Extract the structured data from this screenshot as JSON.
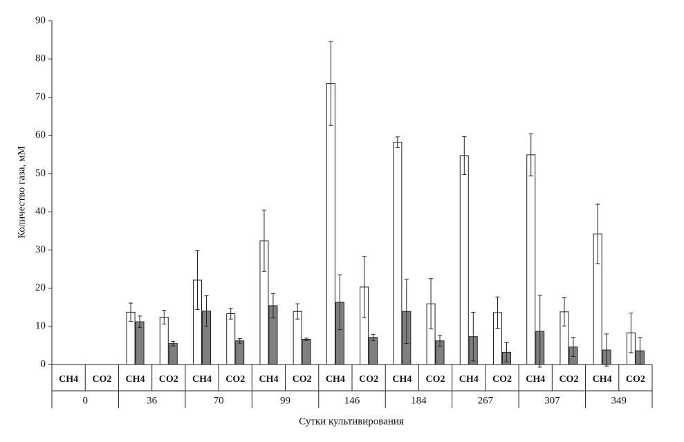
{
  "chart_data": {
    "type": "bar",
    "x_label": "Сутки культивирования",
    "y_label": "Количество газа, мМ",
    "groups": [
      "0",
      "36",
      "70",
      "99",
      "146",
      "184",
      "267",
      "307",
      "349"
    ],
    "categories": [
      "CH4",
      "CO2",
      "CH4",
      "CO2",
      "CH4",
      "CO2",
      "CH4",
      "CO2",
      "CH4",
      "CO2",
      "CH4",
      "CO2",
      "CH4",
      "CO2",
      "CH4",
      "CO2",
      "CH4",
      "CO2"
    ],
    "series": [
      {
        "color": "#ffffff",
        "values": [
          null,
          null,
          13.7,
          12.4,
          22.1,
          13.3,
          32.4,
          13.9,
          73.6,
          20.3,
          58.2,
          15.9,
          54.7,
          13.6,
          54.9,
          13.8,
          34.2,
          8.3
        ],
        "errors": [
          null,
          null,
          2.4,
          1.8,
          7.7,
          1.4,
          8,
          2,
          11,
          8,
          1.4,
          6.6,
          5,
          4.1,
          5.5,
          3.7,
          7.8,
          5.2
        ]
      },
      {
        "color": "#7f7f7f",
        "values": [
          null,
          null,
          11.2,
          5.5,
          14,
          6.2,
          15.4,
          6.6,
          16.3,
          7.1,
          13.9,
          6.2,
          7.3,
          3.2,
          8.7,
          4.6,
          3.8,
          3.6
        ],
        "errors": [
          null,
          null,
          1.5,
          0.6,
          4,
          0.6,
          3.2,
          0.3,
          7.2,
          0.8,
          8.4,
          1.4,
          6.4,
          2.5,
          9.4,
          2.5,
          4.2,
          3.5
        ]
      }
    ],
    "ylim": [
      0,
      90
    ],
    "yticks": [
      0,
      10,
      20,
      30,
      40,
      50,
      60,
      70,
      80,
      90
    ],
    "grid": false
  }
}
